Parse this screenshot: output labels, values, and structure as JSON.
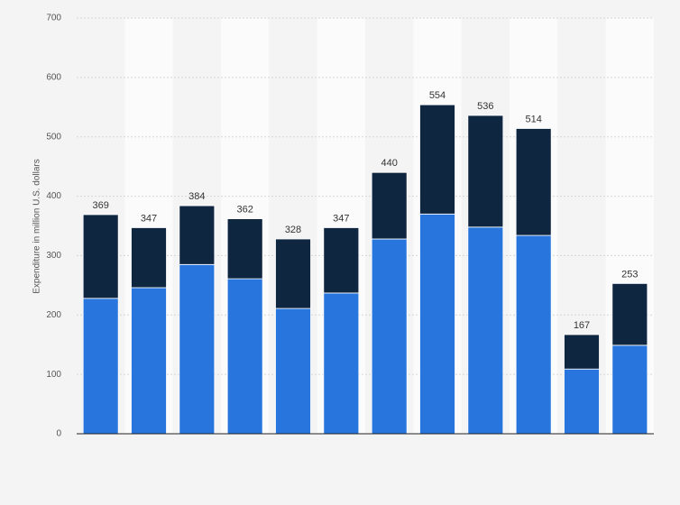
{
  "chart_data": {
    "type": "stacked_bar",
    "y_label": "Expenditure in million U.S. dollars",
    "categories": [
      null,
      null,
      null,
      null,
      null,
      null,
      null,
      null,
      null,
      null,
      null,
      null
    ],
    "series": [
      {
        "color": "#2876dd",
        "values": [
          228,
          246,
          285,
          261,
          211,
          237,
          328,
          370,
          348,
          334,
          109,
          149
        ]
      },
      {
        "color": "#0f2640",
        "values": [
          141,
          101,
          99,
          101,
          117,
          110,
          112,
          184,
          188,
          180,
          58,
          104
        ]
      }
    ],
    "totals": [
      369,
      347,
      384,
      362,
      328,
      347,
      440,
      554,
      536,
      514,
      167,
      253
    ],
    "ylim": [
      0,
      700
    ],
    "yticks": [
      0,
      100,
      200,
      300,
      400,
      500,
      600,
      700
    ],
    "grid": true
  }
}
